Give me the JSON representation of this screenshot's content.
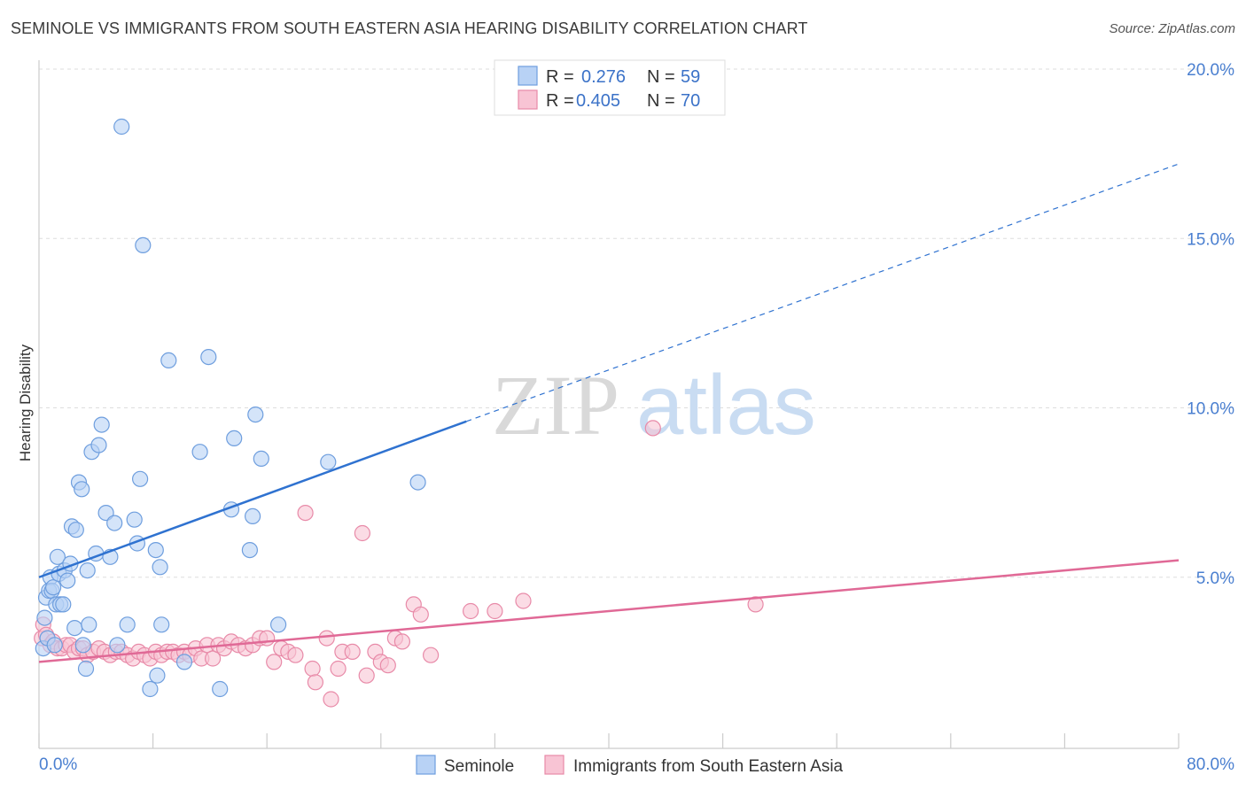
{
  "title": "SEMINOLE VS IMMIGRANTS FROM SOUTH EASTERN ASIA HEARING DISABILITY CORRELATION CHART",
  "source": "Source: ZipAtlas.com",
  "watermark": {
    "part1": "ZIP",
    "part2": "atlas"
  },
  "colors": {
    "seminole_fill": "#b8d2f5",
    "seminole_stroke": "#6e9ede",
    "seminole_line": "#2f72d0",
    "immigrants_fill": "#f8c4d4",
    "immigrants_stroke": "#e88aa8",
    "immigrants_line": "#e06996",
    "grid": "#dddddd",
    "tick_label": "#4a7fd0"
  },
  "legend": {
    "r_label": "R =",
    "n_label": "N =",
    "rows": [
      {
        "r": "0.276",
        "n": "59"
      },
      {
        "r": "0.405",
        "n": "70"
      }
    ]
  },
  "chart_data": {
    "type": "scatter",
    "title": "SEMINOLE VS IMMIGRANTS FROM SOUTH EASTERN ASIA HEARING DISABILITY CORRELATION CHART",
    "xlabel": "",
    "ylabel": "Hearing Disability",
    "xlim": [
      0,
      80
    ],
    "ylim": [
      0,
      20
    ],
    "x_tick_labels": [
      "0.0%",
      "80.0%"
    ],
    "y_ticks": [
      5,
      10,
      15,
      20
    ],
    "y_tick_labels": [
      "5.0%",
      "10.0%",
      "15.0%",
      "20.0%"
    ],
    "grid": true,
    "legend_position": "top-center",
    "series": [
      {
        "name": "Seminole",
        "r": 0.276,
        "n": 59,
        "trend": {
          "x0": 0,
          "y0": 5.0,
          "x1": 30,
          "y1": 9.6,
          "dash_x1": 80,
          "dash_y1": 17.2
        },
        "points": [
          [
            0.3,
            2.9
          ],
          [
            0.4,
            3.8
          ],
          [
            0.5,
            4.4
          ],
          [
            0.6,
            3.2
          ],
          [
            0.7,
            4.6
          ],
          [
            0.8,
            5.0
          ],
          [
            0.9,
            4.6
          ],
          [
            1.0,
            4.7
          ],
          [
            1.1,
            3.0
          ],
          [
            1.2,
            4.2
          ],
          [
            1.3,
            5.6
          ],
          [
            1.4,
            5.1
          ],
          [
            1.5,
            4.2
          ],
          [
            1.7,
            4.2
          ],
          [
            1.8,
            5.2
          ],
          [
            2.0,
            4.9
          ],
          [
            2.2,
            5.4
          ],
          [
            2.3,
            6.5
          ],
          [
            2.5,
            3.5
          ],
          [
            2.6,
            6.4
          ],
          [
            2.8,
            7.8
          ],
          [
            3.0,
            7.6
          ],
          [
            3.1,
            3.0
          ],
          [
            3.3,
            2.3
          ],
          [
            3.4,
            5.2
          ],
          [
            3.5,
            3.6
          ],
          [
            3.7,
            8.7
          ],
          [
            4.0,
            5.7
          ],
          [
            4.2,
            8.9
          ],
          [
            4.4,
            9.5
          ],
          [
            4.7,
            6.9
          ],
          [
            5.0,
            5.6
          ],
          [
            5.3,
            6.6
          ],
          [
            5.5,
            3.0
          ],
          [
            5.8,
            18.3
          ],
          [
            6.2,
            3.6
          ],
          [
            6.7,
            6.7
          ],
          [
            6.9,
            6.0
          ],
          [
            7.1,
            7.9
          ],
          [
            7.3,
            14.8
          ],
          [
            7.8,
            1.7
          ],
          [
            8.2,
            5.8
          ],
          [
            8.3,
            2.1
          ],
          [
            8.5,
            5.3
          ],
          [
            8.6,
            3.6
          ],
          [
            9.1,
            11.4
          ],
          [
            10.2,
            2.5
          ],
          [
            11.3,
            8.7
          ],
          [
            11.9,
            11.5
          ],
          [
            12.7,
            1.7
          ],
          [
            13.5,
            7.0
          ],
          [
            13.7,
            9.1
          ],
          [
            14.8,
            5.8
          ],
          [
            15.0,
            6.8
          ],
          [
            15.2,
            9.8
          ],
          [
            15.6,
            8.5
          ],
          [
            16.8,
            3.6
          ],
          [
            20.3,
            8.4
          ],
          [
            26.6,
            7.8
          ]
        ]
      },
      {
        "name": "Immigrants from South Eastern Asia",
        "r": 0.405,
        "n": 70,
        "trend": {
          "x0": 0,
          "y0": 2.5,
          "x1": 80,
          "y1": 5.5
        },
        "points": [
          [
            0.2,
            3.2
          ],
          [
            0.3,
            3.6
          ],
          [
            0.5,
            3.3
          ],
          [
            0.8,
            3.0
          ],
          [
            1.0,
            3.1
          ],
          [
            1.3,
            2.9
          ],
          [
            1.6,
            2.9
          ],
          [
            1.9,
            3.0
          ],
          [
            2.2,
            3.0
          ],
          [
            2.5,
            2.8
          ],
          [
            2.8,
            2.9
          ],
          [
            3.1,
            2.9
          ],
          [
            3.4,
            2.7
          ],
          [
            3.8,
            2.8
          ],
          [
            4.2,
            2.9
          ],
          [
            4.6,
            2.8
          ],
          [
            5.0,
            2.7
          ],
          [
            5.4,
            2.8
          ],
          [
            5.8,
            2.8
          ],
          [
            6.2,
            2.7
          ],
          [
            6.6,
            2.6
          ],
          [
            7.0,
            2.8
          ],
          [
            7.4,
            2.7
          ],
          [
            7.8,
            2.6
          ],
          [
            8.2,
            2.8
          ],
          [
            8.6,
            2.7
          ],
          [
            9.0,
            2.8
          ],
          [
            9.4,
            2.8
          ],
          [
            9.8,
            2.7
          ],
          [
            10.2,
            2.8
          ],
          [
            10.6,
            2.7
          ],
          [
            11.0,
            2.9
          ],
          [
            11.4,
            2.6
          ],
          [
            11.8,
            3.0
          ],
          [
            12.2,
            2.6
          ],
          [
            12.6,
            3.0
          ],
          [
            13.0,
            2.9
          ],
          [
            13.5,
            3.1
          ],
          [
            14.0,
            3.0
          ],
          [
            14.5,
            2.9
          ],
          [
            15.0,
            3.0
          ],
          [
            15.5,
            3.2
          ],
          [
            16.0,
            3.2
          ],
          [
            16.5,
            2.5
          ],
          [
            17.0,
            2.9
          ],
          [
            17.5,
            2.8
          ],
          [
            18.0,
            2.7
          ],
          [
            18.7,
            6.9
          ],
          [
            19.2,
            2.3
          ],
          [
            19.4,
            1.9
          ],
          [
            20.2,
            3.2
          ],
          [
            20.5,
            1.4
          ],
          [
            21.0,
            2.3
          ],
          [
            21.3,
            2.8
          ],
          [
            22.0,
            2.8
          ],
          [
            22.7,
            6.3
          ],
          [
            23.0,
            2.1
          ],
          [
            23.6,
            2.8
          ],
          [
            24.0,
            2.5
          ],
          [
            24.5,
            2.4
          ],
          [
            25.0,
            3.2
          ],
          [
            25.5,
            3.1
          ],
          [
            26.3,
            4.2
          ],
          [
            26.8,
            3.9
          ],
          [
            27.5,
            2.7
          ],
          [
            30.3,
            4.0
          ],
          [
            32.0,
            4.0
          ],
          [
            34.0,
            4.3
          ],
          [
            43.1,
            9.4
          ],
          [
            50.3,
            4.2
          ]
        ]
      }
    ]
  },
  "bottom_legend": [
    {
      "label": "Seminole"
    },
    {
      "label": "Immigrants from South Eastern Asia"
    }
  ]
}
